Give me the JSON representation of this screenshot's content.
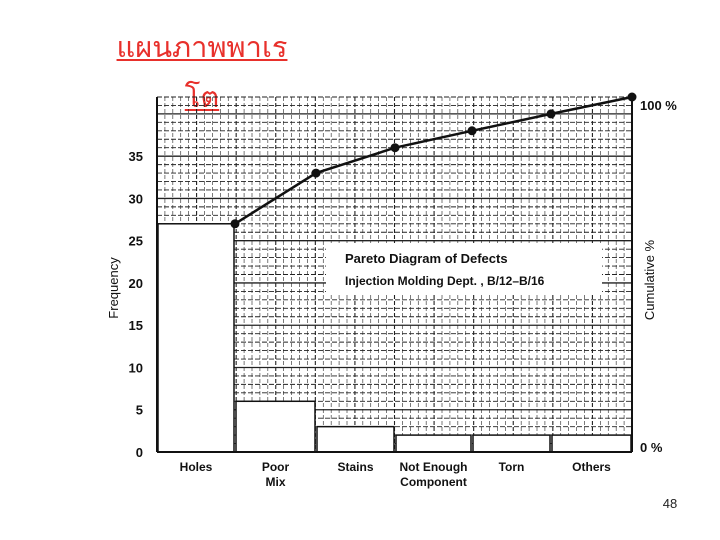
{
  "slide": {
    "title": "แผนภาพพาเรโต",
    "page_number": "48"
  },
  "chart_data": {
    "type": "bar",
    "title": "Pareto Diagram of Defects",
    "subtitle": "Injection Molding Dept. , B/12–B/16",
    "ylabel": "Frequency",
    "y2label": "Cumulative %",
    "categories": [
      "Holes",
      "Poor Mix",
      "Stains",
      "Not Enough Component",
      "Torn",
      "Others"
    ],
    "values": [
      27,
      6,
      3,
      2,
      2,
      2
    ],
    "ylim": [
      0,
      42
    ],
    "yticks": [
      0,
      5,
      10,
      15,
      20,
      25,
      30,
      35
    ],
    "cumulative": {
      "values": [
        27,
        33,
        36,
        38,
        40,
        42
      ],
      "percent_ticks": [
        "0 %",
        "100 %"
      ]
    },
    "grid": true,
    "colors": {
      "bar_fill": "#ffffff",
      "bar_stroke": "#111111",
      "line": "#111111",
      "grid": "#222222"
    }
  }
}
